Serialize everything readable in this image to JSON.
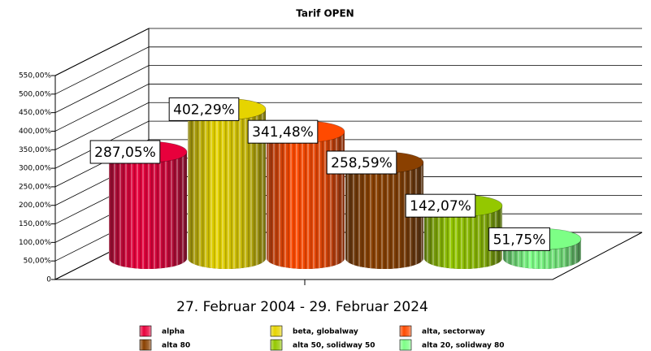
{
  "chart_data": {
    "type": "cylinder",
    "title": "Tarif OPEN",
    "categories": [
      "27. Februar 2004 - 29. Februar 2024"
    ],
    "series": [
      {
        "name": "alpha",
        "color": "#e8003c",
        "values": [
          287.05
        ],
        "value_labels": [
          "287,05%"
        ]
      },
      {
        "name": "beta, globalway",
        "color": "#e6d400",
        "values": [
          402.29
        ],
        "value_labels": [
          "402,29%"
        ]
      },
      {
        "name": "alta, sectorway",
        "color": "#ff4a00",
        "values": [
          341.48
        ],
        "value_labels": [
          "341,48%"
        ]
      },
      {
        "name": "alta 80",
        "color": "#8a4000",
        "values": [
          258.59
        ],
        "value_labels": [
          "258,59%"
        ]
      },
      {
        "name": "alta 50, solidway 50",
        "color": "#94c800",
        "values": [
          142.07
        ],
        "value_labels": [
          "142,07%"
        ]
      },
      {
        "name": "alta 20, solidway 80",
        "color": "#7dff86",
        "values": [
          51.75
        ],
        "value_labels": [
          "51,75%"
        ]
      }
    ],
    "ylim": [
      0,
      550
    ],
    "yticks": [
      0,
      {
        "value": 50,
        "label": "50,00%"
      },
      {
        "value": 100,
        "label": "100,00%"
      },
      {
        "value": 150,
        "label": "150,00%"
      },
      {
        "value": 200,
        "label": "200,00%"
      },
      {
        "value": 250,
        "label": "250,00%"
      },
      {
        "value": 300,
        "label": "300,00%"
      },
      {
        "value": 350,
        "label": "350,00%"
      },
      {
        "value": 400,
        "label": "400,00%"
      },
      {
        "value": 450,
        "label": "450,00%"
      },
      {
        "value": 500,
        "label": "500,00%"
      },
      {
        "value": 550,
        "label": "550,00%"
      }
    ],
    "grid": true
  }
}
